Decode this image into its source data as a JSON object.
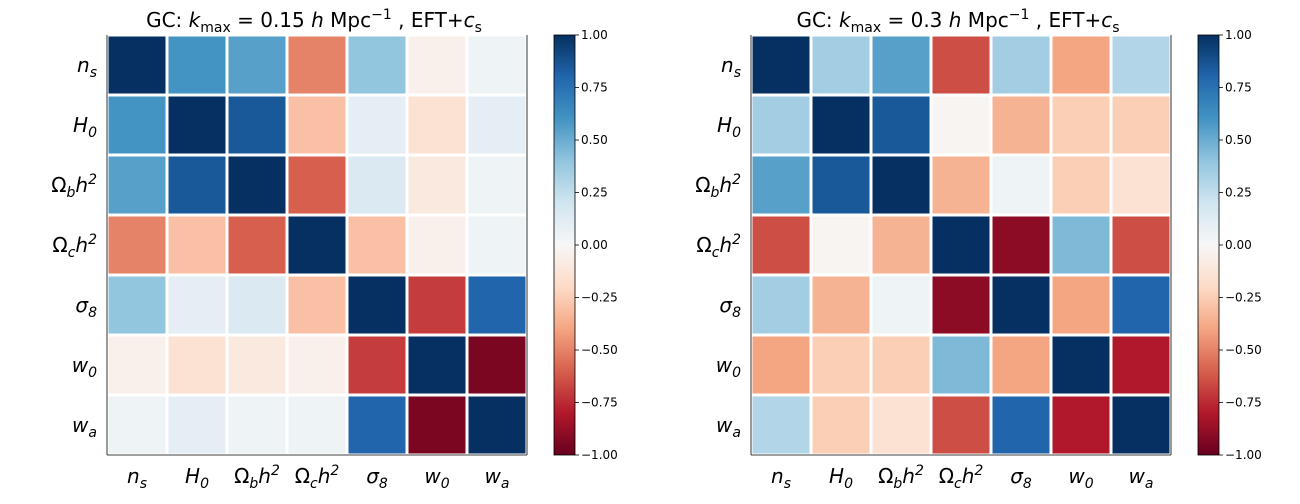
{
  "chart_data": [
    {
      "type": "heatmap",
      "title": "GC: k_max = 0.15 h Mpc^-1 , EFT+c_s",
      "title_parts": {
        "prefix": "GC: ",
        "k": "k",
        "k_sub": "max",
        "eq": " = 0.15 ",
        "h": "h",
        "unit": " Mpc",
        "sup": "−1",
        "suffix": " , EFT+",
        "c": "c",
        "c_sub": "s"
      },
      "params": [
        {
          "base": "n",
          "sub": "s",
          "sup": ""
        },
        {
          "base": "H",
          "sub": "0",
          "sup": ""
        },
        {
          "base": "Ωh",
          "sub": "b",
          "sup": "2"
        },
        {
          "base": "Ωh",
          "sub": "c",
          "sup": "2"
        },
        {
          "base": "σ",
          "sub": "8",
          "sup": ""
        },
        {
          "base": "w",
          "sub": "0",
          "sup": ""
        },
        {
          "base": "w",
          "sub": "a",
          "sup": ""
        }
      ],
      "matrix": [
        [
          1.0,
          0.6,
          0.55,
          -0.5,
          0.4,
          -0.05,
          0.05
        ],
        [
          0.6,
          1.0,
          0.85,
          -0.3,
          0.1,
          -0.15,
          0.1
        ],
        [
          0.55,
          0.85,
          1.0,
          -0.6,
          0.15,
          -0.1,
          0.05
        ],
        [
          -0.5,
          -0.3,
          -0.6,
          1.0,
          -0.3,
          -0.05,
          0.05
        ],
        [
          0.4,
          0.1,
          0.15,
          -0.3,
          1.0,
          -0.7,
          0.8
        ],
        [
          -0.05,
          -0.15,
          -0.1,
          -0.05,
          -0.7,
          1.0,
          -0.95
        ],
        [
          0.05,
          0.1,
          0.05,
          0.05,
          0.8,
          -0.95,
          1.0
        ]
      ],
      "colorbar": {
        "range": [
          -1.0,
          1.0
        ],
        "ticks": [
          "1.00",
          "0.75",
          "0.50",
          "0.25",
          "0.00",
          "−0.25",
          "−0.50",
          "−0.75",
          "−1.00"
        ]
      }
    },
    {
      "type": "heatmap",
      "title": "GC: k_max = 0.3 h Mpc^-1 , EFT+c_s",
      "title_parts": {
        "prefix": "GC: ",
        "k": "k",
        "k_sub": "max",
        "eq": " = 0.3 ",
        "h": "h",
        "unit": " Mpc",
        "sup": "−1",
        "suffix": " , EFT+",
        "c": "c",
        "c_sub": "s"
      },
      "params": [
        {
          "base": "n",
          "sub": "s",
          "sup": ""
        },
        {
          "base": "H",
          "sub": "0",
          "sup": ""
        },
        {
          "base": "Ωh",
          "sub": "b",
          "sup": "2"
        },
        {
          "base": "Ωh",
          "sub": "c",
          "sup": "2"
        },
        {
          "base": "σ",
          "sub": "8",
          "sup": ""
        },
        {
          "base": "w",
          "sub": "0",
          "sup": ""
        },
        {
          "base": "w",
          "sub": "a",
          "sup": ""
        }
      ],
      "matrix": [
        [
          1.0,
          0.35,
          0.55,
          -0.65,
          0.35,
          -0.4,
          0.3
        ],
        [
          0.35,
          1.0,
          0.85,
          -0.02,
          -0.35,
          -0.25,
          -0.25
        ],
        [
          0.55,
          0.85,
          1.0,
          -0.35,
          0.05,
          -0.25,
          -0.15
        ],
        [
          -0.65,
          -0.02,
          -0.35,
          1.0,
          -0.9,
          0.45,
          -0.65
        ],
        [
          0.35,
          -0.35,
          0.05,
          -0.9,
          1.0,
          -0.4,
          0.8
        ],
        [
          -0.4,
          -0.25,
          -0.25,
          0.45,
          -0.4,
          1.0,
          -0.8
        ],
        [
          0.3,
          -0.25,
          -0.15,
          -0.65,
          0.8,
          -0.8,
          1.0
        ]
      ],
      "colorbar": {
        "range": [
          -1.0,
          1.0
        ],
        "ticks": [
          "1.00",
          "0.75",
          "0.50",
          "0.25",
          "0.00",
          "−0.25",
          "−0.50",
          "−0.75",
          "−1.00"
        ]
      }
    }
  ]
}
